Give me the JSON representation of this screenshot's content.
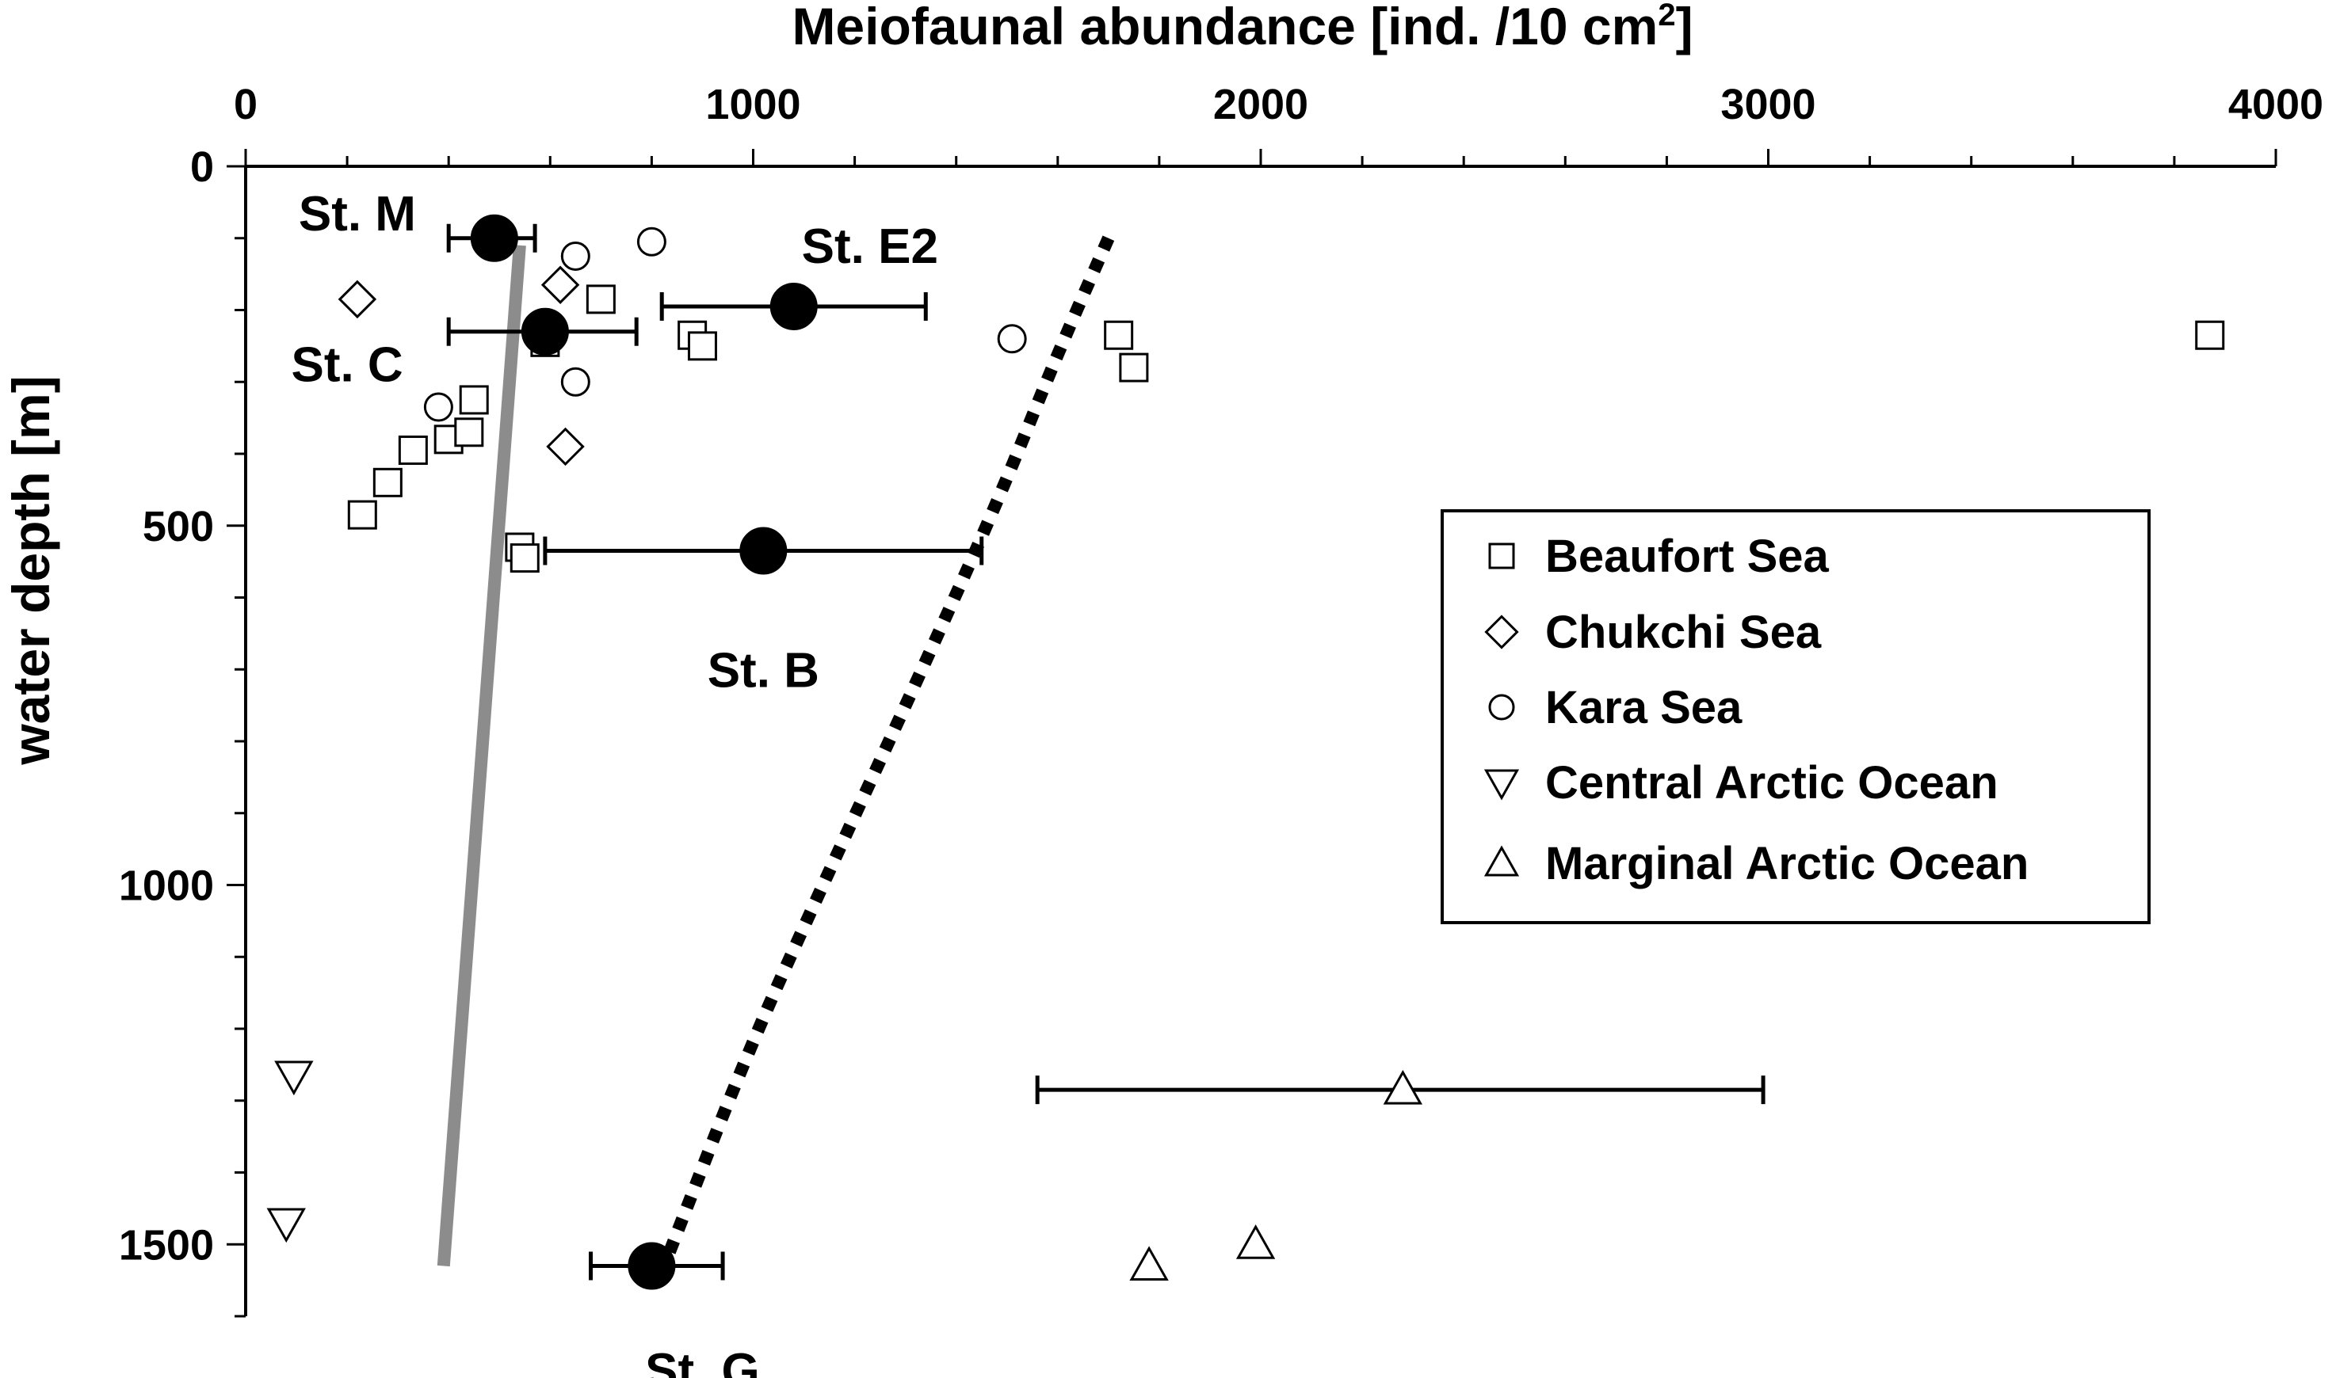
{
  "chart_data": {
    "type": "scatter",
    "title": "",
    "xlabel": "Meiofaunal abundance [ind. /10 cm",
    "xlabel_sup": "2",
    "xlabel_end": "]",
    "ylabel": "water depth [m]",
    "xlim": [
      0,
      4000
    ],
    "ylim": [
      0,
      1600
    ],
    "y_inverted": true,
    "x_axis_position": "top",
    "grid": false,
    "legend_position": "right",
    "x_major_ticks": [
      0,
      1000,
      2000,
      3000,
      4000
    ],
    "x_minor_step": 200,
    "y_major_ticks": [
      0,
      500,
      1000,
      1500
    ],
    "y_minor_step": 100,
    "series": [
      {
        "name": "Beaufort Sea",
        "marker": "square",
        "points": [
          {
            "x": 230,
            "y": 485
          },
          {
            "x": 280,
            "y": 440
          },
          {
            "x": 330,
            "y": 395
          },
          {
            "x": 400,
            "y": 380
          },
          {
            "x": 440,
            "y": 370
          },
          {
            "x": 450,
            "y": 325
          },
          {
            "x": 540,
            "y": 530
          },
          {
            "x": 550,
            "y": 545
          },
          {
            "x": 590,
            "y": 245
          },
          {
            "x": 700,
            "y": 185
          },
          {
            "x": 880,
            "y": 235
          },
          {
            "x": 900,
            "y": 250
          },
          {
            "x": 1720,
            "y": 235
          },
          {
            "x": 1750,
            "y": 280
          },
          {
            "x": 3870,
            "y": 235
          }
        ]
      },
      {
        "name": "Chukchi Sea",
        "marker": "diamond",
        "points": [
          {
            "x": 220,
            "y": 185
          },
          {
            "x": 620,
            "y": 165
          },
          {
            "x": 630,
            "y": 390
          }
        ]
      },
      {
        "name": "Kara Sea",
        "marker": "circle",
        "points": [
          {
            "x": 380,
            "y": 335
          },
          {
            "x": 650,
            "y": 125
          },
          {
            "x": 800,
            "y": 105
          },
          {
            "x": 650,
            "y": 300
          },
          {
            "x": 1510,
            "y": 240
          }
        ]
      },
      {
        "name": "Central Arctic Ocean",
        "marker": "triangle-down",
        "points": [
          {
            "x": 95,
            "y": 1265
          },
          {
            "x": 80,
            "y": 1470
          }
        ]
      },
      {
        "name": "Marginal Arctic Ocean",
        "marker": "triangle-up",
        "points": [
          {
            "x": 2280,
            "y": 1285
          },
          {
            "x": 1780,
            "y": 1530
          },
          {
            "x": 1990,
            "y": 1500
          }
        ]
      }
    ],
    "stations": [
      {
        "label": "St. M",
        "x": 490,
        "y": 100,
        "xerr_low": 400,
        "xerr_high": 570,
        "label_x": 220,
        "label_y": 65
      },
      {
        "label": "St. C",
        "x": 590,
        "y": 230,
        "xerr_low": 400,
        "xerr_high": 770,
        "label_x": 200,
        "label_y": 275
      },
      {
        "label": "St. E2",
        "x": 1080,
        "y": 195,
        "xerr_low": 820,
        "xerr_high": 1340,
        "label_x": 1230,
        "label_y": 110
      },
      {
        "label": "St. B",
        "x": 1020,
        "y": 535,
        "xerr_low": 590,
        "xerr_high": 1450,
        "label_x": 1020,
        "label_y": 700
      },
      {
        "label": "St. G",
        "x": 800,
        "y": 1530,
        "xerr_low": 680,
        "xerr_high": 940,
        "label_x": 900,
        "label_y": 1675
      }
    ],
    "marginal_errorbar": {
      "y": 1285,
      "xerr_low": 1560,
      "xerr_high": 2990
    },
    "trend_solid": {
      "x1": 540,
      "y1": 110,
      "x2": 390,
      "y2": 1530,
      "color": "#8c8c8c"
    },
    "trend_dotted": [
      {
        "x": 1700,
        "y": 100
      },
      {
        "x": 1600,
        "y": 260
      },
      {
        "x": 1480,
        "y": 470
      },
      {
        "x": 1320,
        "y": 720
      },
      {
        "x": 1150,
        "y": 980
      },
      {
        "x": 990,
        "y": 1230
      },
      {
        "x": 830,
        "y": 1520
      }
    ]
  }
}
